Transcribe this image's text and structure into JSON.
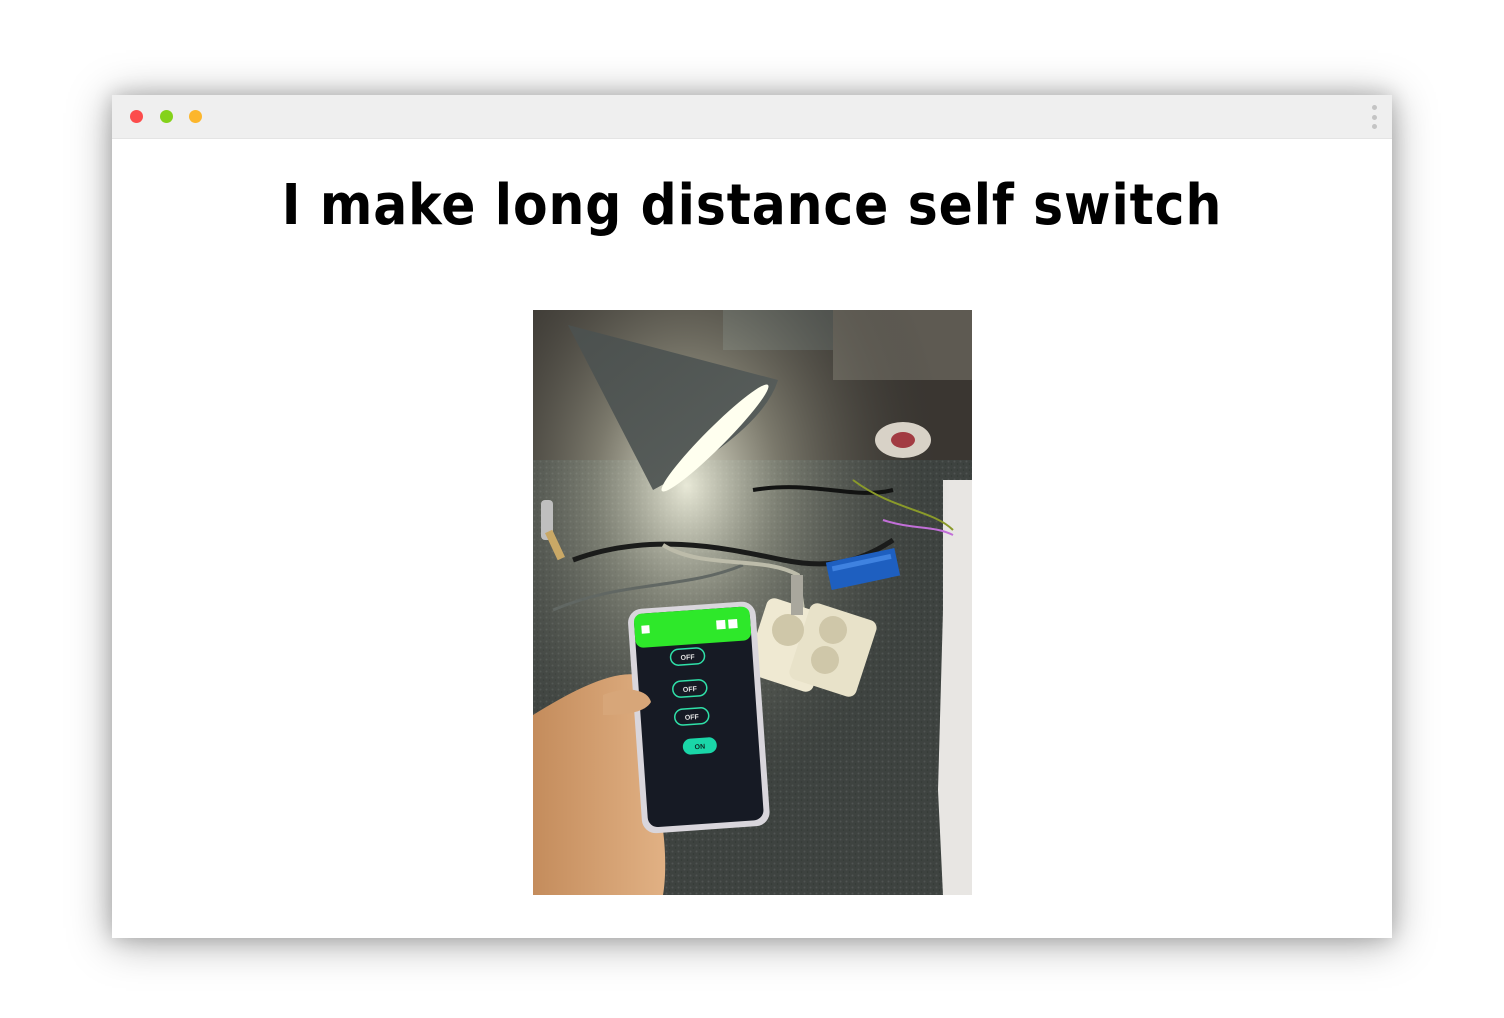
{
  "window": {
    "controls": [
      "close",
      "minimize",
      "maximize"
    ],
    "menu_icon": "kebab-menu-icon"
  },
  "page": {
    "headline": "I make long distance self switch"
  },
  "photo": {
    "phone_app": {
      "header_color": "#2ee82a",
      "buttons": [
        "OFF",
        "OFF",
        "OFF",
        "ON"
      ],
      "on_color": "#1ad6a8"
    }
  }
}
